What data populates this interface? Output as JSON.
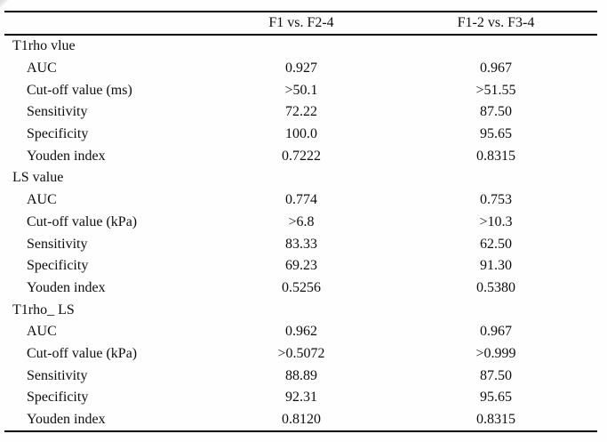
{
  "table": {
    "columns": [
      "",
      "F1 vs. F2-4",
      "F1-2 vs. F3-4"
    ],
    "sections": [
      {
        "title": "T1rho vlue",
        "rows": [
          [
            "AUC",
            "0.927",
            "0.967"
          ],
          [
            "Cut-off value (ms)",
            ">50.1",
            ">51.55"
          ],
          [
            "Sensitivity",
            "72.22",
            "87.50"
          ],
          [
            "Specificity",
            "100.0",
            "95.65"
          ],
          [
            "Youden index",
            "0.7222",
            "0.8315"
          ]
        ]
      },
      {
        "title": "LS value",
        "rows": [
          [
            "AUC",
            "0.774",
            "0.753"
          ],
          [
            "Cut-off value (kPa)",
            ">6.8",
            ">10.3"
          ],
          [
            "Sensitivity",
            "83.33",
            "62.50"
          ],
          [
            "Specificity",
            "69.23",
            "91.30"
          ],
          [
            "Youden index",
            "0.5256",
            "0.5380"
          ]
        ]
      },
      {
        "title": "T1rho_ LS",
        "rows": [
          [
            "AUC",
            "0.962",
            "0.967"
          ],
          [
            "Cut-off value (kPa)",
            ">0.5072",
            ">0.999"
          ],
          [
            "Sensitivity",
            "88.89",
            "87.50"
          ],
          [
            "Specificity",
            "92.31",
            "95.65"
          ],
          [
            "Youden index",
            "0.8120",
            "0.8315"
          ]
        ]
      }
    ]
  }
}
